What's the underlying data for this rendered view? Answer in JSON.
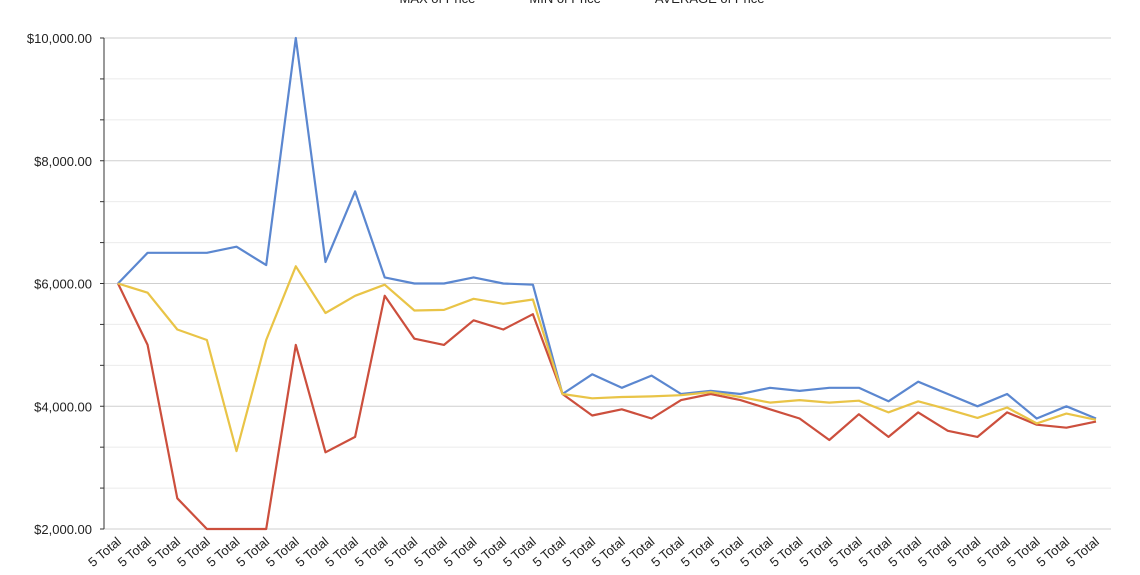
{
  "chart_data": {
    "type": "line",
    "x_tick_label": "5 Total",
    "x_count": 34,
    "ylim": [
      2000,
      10000
    ],
    "y_ticks": [
      {
        "value": 2000,
        "label": "$2,000.00"
      },
      {
        "value": 4000,
        "label": "$4,000.00"
      },
      {
        "value": 6000,
        "label": "$6,000.00"
      },
      {
        "value": 8000,
        "label": "$8,000.00"
      },
      {
        "value": 10000,
        "label": "$10,000.00"
      }
    ],
    "grid": true,
    "legend_position": "top",
    "series": [
      {
        "name": "MAX of Price",
        "color": "#5b87d0",
        "values": [
          6000,
          6500,
          6500,
          6500,
          6600,
          6300,
          10000,
          6350,
          7500,
          6100,
          6000,
          6000,
          6100,
          6000,
          5980,
          4200,
          4520,
          4300,
          4500,
          4200,
          4250,
          4200,
          4300,
          4250,
          4300,
          4300,
          4080,
          4400,
          4200,
          4000,
          4200,
          3800,
          4000,
          3800
        ]
      },
      {
        "name": "MIN of Price",
        "color": "#cc4f3d",
        "values": [
          6000,
          5000,
          2500,
          2000,
          2000,
          2000,
          5000,
          3250,
          3500,
          5800,
          5100,
          5000,
          5400,
          5250,
          5500,
          4200,
          3850,
          3950,
          3800,
          4100,
          4200,
          4100,
          3950,
          3800,
          3450,
          3870,
          3500,
          3900,
          3600,
          3500,
          3900,
          3700,
          3650,
          3750
        ]
      },
      {
        "name": "AVERAGE of Price",
        "color": "#e9c447",
        "values": [
          6000,
          5850,
          5250,
          5080,
          3270,
          5080,
          6280,
          5520,
          5800,
          5980,
          5560,
          5570,
          5750,
          5670,
          5740,
          4200,
          4130,
          4150,
          4160,
          4180,
          4230,
          4150,
          4060,
          4100,
          4060,
          4090,
          3900,
          4080,
          3950,
          3810,
          3980,
          3720,
          3880,
          3780
        ]
      }
    ]
  }
}
